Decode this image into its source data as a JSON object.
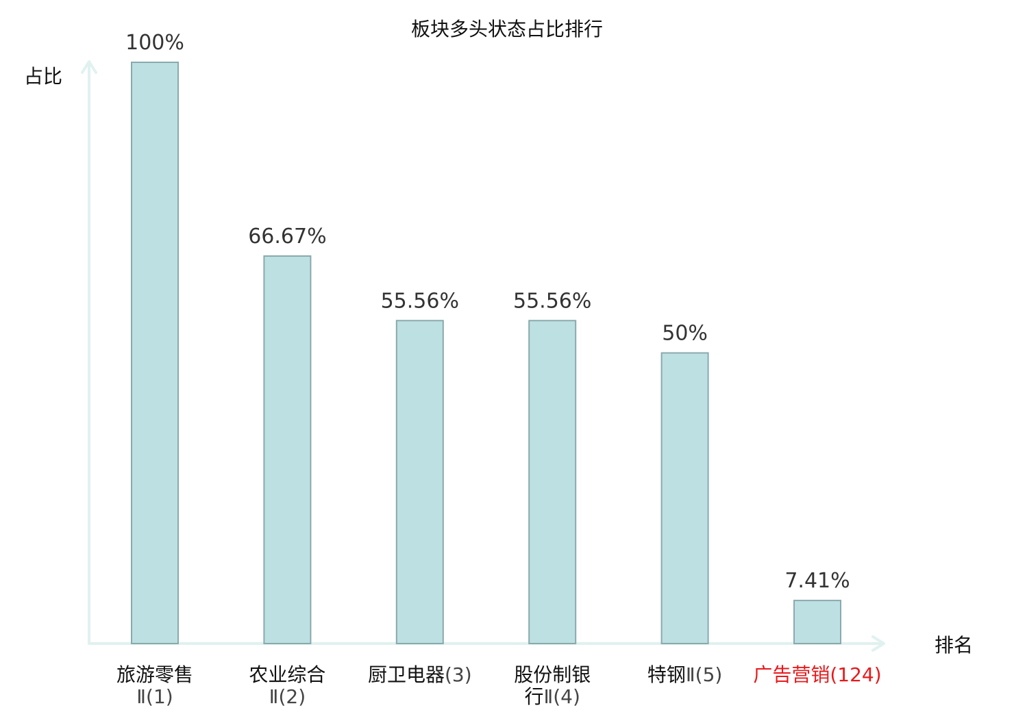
{
  "chart_data": {
    "type": "bar",
    "title": "板块多头状态占比排行",
    "ylabel": "占比",
    "xlabel": "排名",
    "ylim": [
      0,
      100
    ],
    "grid": false,
    "legend": "none",
    "bar_color": "#bde0e3",
    "bar_edge_color": "#8aa9ad",
    "axis_color": "#e0f2ef",
    "highlight_color": "#e8191b",
    "categories": [
      {
        "name_lines": [
          "旅游零售"
        ],
        "rank_text": "Ⅱ(1)",
        "highlight": false
      },
      {
        "name_lines": [
          "农业综合"
        ],
        "rank_text": "Ⅱ(2)",
        "highlight": false
      },
      {
        "name_lines": [
          "厨卫电器"
        ],
        "rank_text": "(3)",
        "highlight": false
      },
      {
        "name_lines": [
          "股份制银",
          "行"
        ],
        "rank_text": "Ⅱ(4)",
        "highlight": false
      },
      {
        "name_lines": [
          "特钢"
        ],
        "rank_text": "Ⅱ(5)",
        "highlight": false
      },
      {
        "name_lines": [
          "广告营销"
        ],
        "rank_text": "(124)",
        "highlight": true
      }
    ],
    "values": [
      100,
      66.67,
      55.56,
      55.56,
      50,
      7.41
    ],
    "value_labels": [
      "100%",
      "66.67%",
      "55.56%",
      "55.56%",
      "50%",
      "7.41%"
    ]
  }
}
